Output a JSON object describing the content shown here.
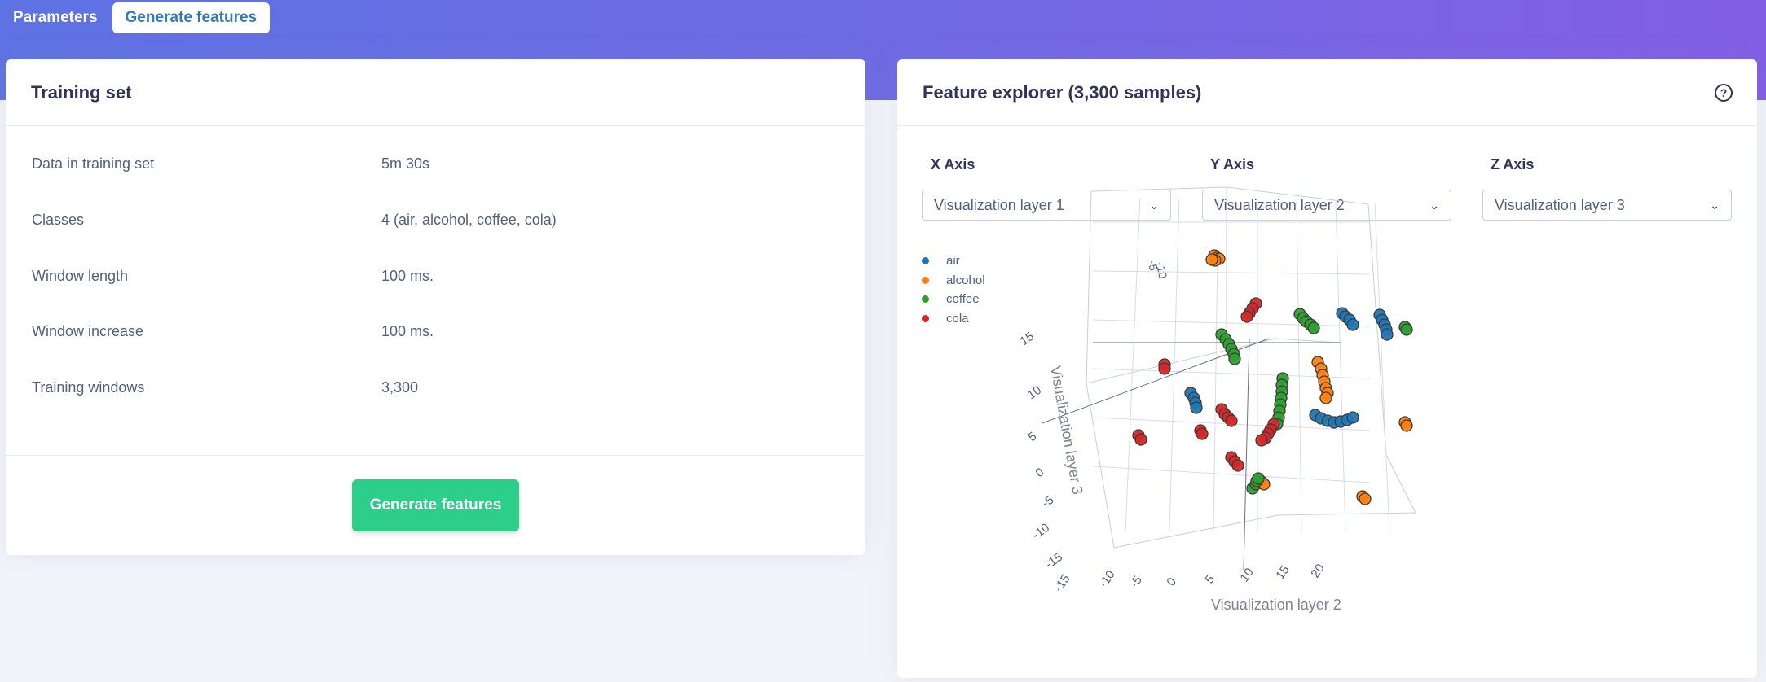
{
  "nav": {
    "tabs": [
      {
        "label": "Parameters"
      },
      {
        "label": "Generate features"
      }
    ]
  },
  "training": {
    "title": "Training set",
    "rows": [
      {
        "key": "Data in training set",
        "value": "5m 30s"
      },
      {
        "key": "Classes",
        "value": "4 (air, alcohol, coffee, cola)"
      },
      {
        "key": "Window length",
        "value": "100 ms."
      },
      {
        "key": "Window increase",
        "value": "100 ms."
      },
      {
        "key": "Training windows",
        "value": "3,300"
      }
    ],
    "button_label": "Generate features"
  },
  "explorer": {
    "title": "Feature explorer (3,300 samples)",
    "help_icon": "question-circle-icon",
    "help_glyph": "?",
    "axes": {
      "x": {
        "label": "X Axis",
        "selected": "Visualization layer 1"
      },
      "y": {
        "label": "Y Axis",
        "selected": "Visualization layer 2"
      },
      "z": {
        "label": "Z Axis",
        "selected": "Visualization layer 3"
      }
    },
    "chevron": "⌄",
    "legend": [
      {
        "name": "air",
        "color": "#1f77b4"
      },
      {
        "name": "alcohol",
        "color": "#ff7f0e"
      },
      {
        "name": "coffee",
        "color": "#2ca02c"
      },
      {
        "name": "cola",
        "color": "#d62728"
      }
    ]
  },
  "chart_data": {
    "type": "scatter",
    "projection": "3d",
    "ylabel": "Visualization layer 2",
    "zlabel": "Visualization layer 3",
    "y_ticks": [
      "-15",
      "-10",
      "-5",
      "0",
      "5",
      "10",
      "15",
      "20"
    ],
    "z_ticks": [
      "-15",
      "-10",
      "-5",
      "0",
      "5",
      "10",
      "15"
    ],
    "x_ticks_partial": [
      "-5",
      "-10"
    ],
    "legend_placement": "top-left",
    "grid": true,
    "series": [
      {
        "name": "air",
        "color": "#1f77b4"
      },
      {
        "name": "alcohol",
        "color": "#ff7f0e"
      },
      {
        "name": "coffee",
        "color": "#2ca02c"
      },
      {
        "name": "cola",
        "color": "#d62728"
      }
    ]
  },
  "colors": {
    "brand_gradient_start": "#5e72e4",
    "brand_gradient_end": "#825ee4",
    "success": "#2dce89",
    "link": "#337ab7"
  }
}
